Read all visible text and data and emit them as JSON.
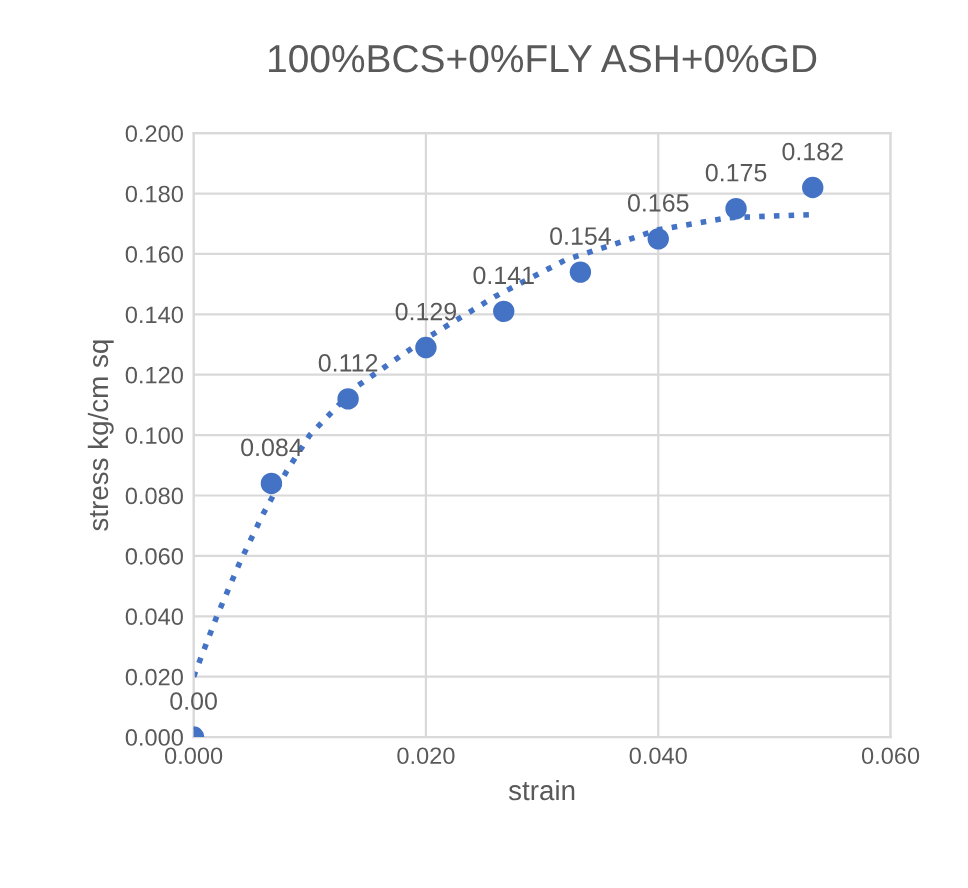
{
  "chart_data": {
    "type": "scatter",
    "title": "100%BCS+0%FLY ASH+0%GD",
    "xlabel": "strain",
    "ylabel": "stress kg/cm sq",
    "xlim": [
      0,
      0.06
    ],
    "ylim": [
      0,
      0.2
    ],
    "xticks": [
      {
        "value": 0,
        "label": "0.000"
      },
      {
        "value": 0.02,
        "label": "0.020"
      },
      {
        "value": 0.04,
        "label": "0.040"
      },
      {
        "value": 0.06,
        "label": "0.060"
      }
    ],
    "yticks": [
      {
        "value": 0,
        "label": "0.000"
      },
      {
        "value": 0.02,
        "label": "0.020"
      },
      {
        "value": 0.04,
        "label": "0.040"
      },
      {
        "value": 0.06,
        "label": "0.060"
      },
      {
        "value": 0.08,
        "label": "0.080"
      },
      {
        "value": 0.1,
        "label": "0.100"
      },
      {
        "value": 0.12,
        "label": "0.120"
      },
      {
        "value": 0.14,
        "label": "0.140"
      },
      {
        "value": 0.16,
        "label": "0.160"
      },
      {
        "value": 0.18,
        "label": "0.180"
      },
      {
        "value": 0.2,
        "label": "0.200"
      }
    ],
    "grid": true,
    "series": [
      {
        "color": "#4472c4",
        "marker": "circle",
        "x": [
          0,
          0.0067,
          0.0133,
          0.02,
          0.0267,
          0.0333,
          0.04,
          0.0467,
          0.0533
        ],
        "values": [
          0,
          0.084,
          0.112,
          0.129,
          0.141,
          0.154,
          0.165,
          0.175,
          0.182
        ],
        "value_labels": [
          "0.00",
          "0.084",
          "0.112",
          "0.129",
          "0.141",
          "0.154",
          "0.165",
          "0.175",
          "0.182"
        ]
      },
      {
        "type": "line",
        "color": "#4472c4",
        "line_style": "dotted",
        "marker": "none",
        "x": [
          0,
          0.002,
          0.004,
          0.006,
          0.008,
          0.01,
          0.014,
          0.02,
          0.026,
          0.032,
          0.04,
          0.046,
          0.053
        ],
        "values": [
          0.02,
          0.04,
          0.058,
          0.074,
          0.088,
          0.1,
          0.116,
          0.132,
          0.146,
          0.158,
          0.168,
          0.172,
          0.173
        ]
      }
    ]
  }
}
